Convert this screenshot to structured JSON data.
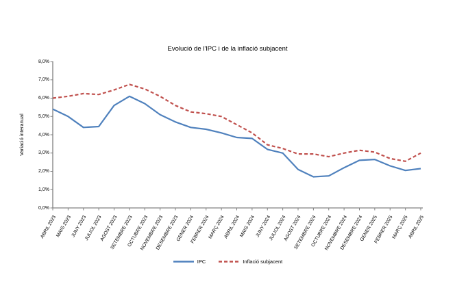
{
  "chart_data": {
    "type": "line",
    "title": "Evolució de l'IPC i de la inflació subjacent",
    "ylabel": "Variació interanual",
    "xlabel": "",
    "ylim": [
      0,
      8
    ],
    "ytick_step": 1,
    "ytick_labels": [
      "0,0%",
      "1,0%",
      "2,0%",
      "3,0%",
      "4,0%",
      "5,0%",
      "6,0%",
      "7,0%",
      "8,0%"
    ],
    "grid": false,
    "legend_position": "bottom",
    "axis_color": "#808080",
    "categories": [
      "ABRIL 2023",
      "MAIG 2023",
      "JUNY 2023",
      "JULIOL 2023",
      "AGOST 2023",
      "SETEMBRE 2023",
      "OCTUBRE 2023",
      "NOVEMBRE 2023",
      "DESEMBRE 2023",
      "GENER 2024",
      "FEBRER 2024",
      "MARÇ 2024",
      "ABRIL 2024",
      "MAIG 2024",
      "JUNY 2024",
      "JULIOL 2024",
      "AGOST 2024",
      "SETEMBRE 2024",
      "OCTUBRE 2024",
      "NOVEMBRE 2024",
      "DESEMBRE 2024",
      "GENER 2025",
      "FEBRER 2025",
      "MARÇ 2025",
      "ABRIL 2025"
    ],
    "series": [
      {
        "name": "IPC",
        "color": "#4F81BD",
        "style": "solid",
        "values": [
          5.4,
          5.0,
          4.4,
          4.45,
          5.6,
          6.1,
          5.7,
          5.1,
          4.7,
          4.4,
          4.3,
          4.1,
          3.85,
          3.8,
          3.2,
          3.0,
          2.1,
          1.7,
          1.75,
          2.2,
          2.6,
          2.65,
          2.3,
          2.05,
          2.15
        ]
      },
      {
        "name": "Inflació subjacent",
        "color": "#C0504D",
        "style": "dashed",
        "values": [
          6.0,
          6.1,
          6.25,
          6.2,
          6.45,
          6.75,
          6.5,
          6.1,
          5.6,
          5.25,
          5.15,
          5.0,
          4.55,
          4.1,
          3.45,
          3.25,
          2.95,
          2.95,
          2.8,
          3.0,
          3.15,
          3.05,
          2.7,
          2.55,
          3.0
        ]
      }
    ]
  }
}
